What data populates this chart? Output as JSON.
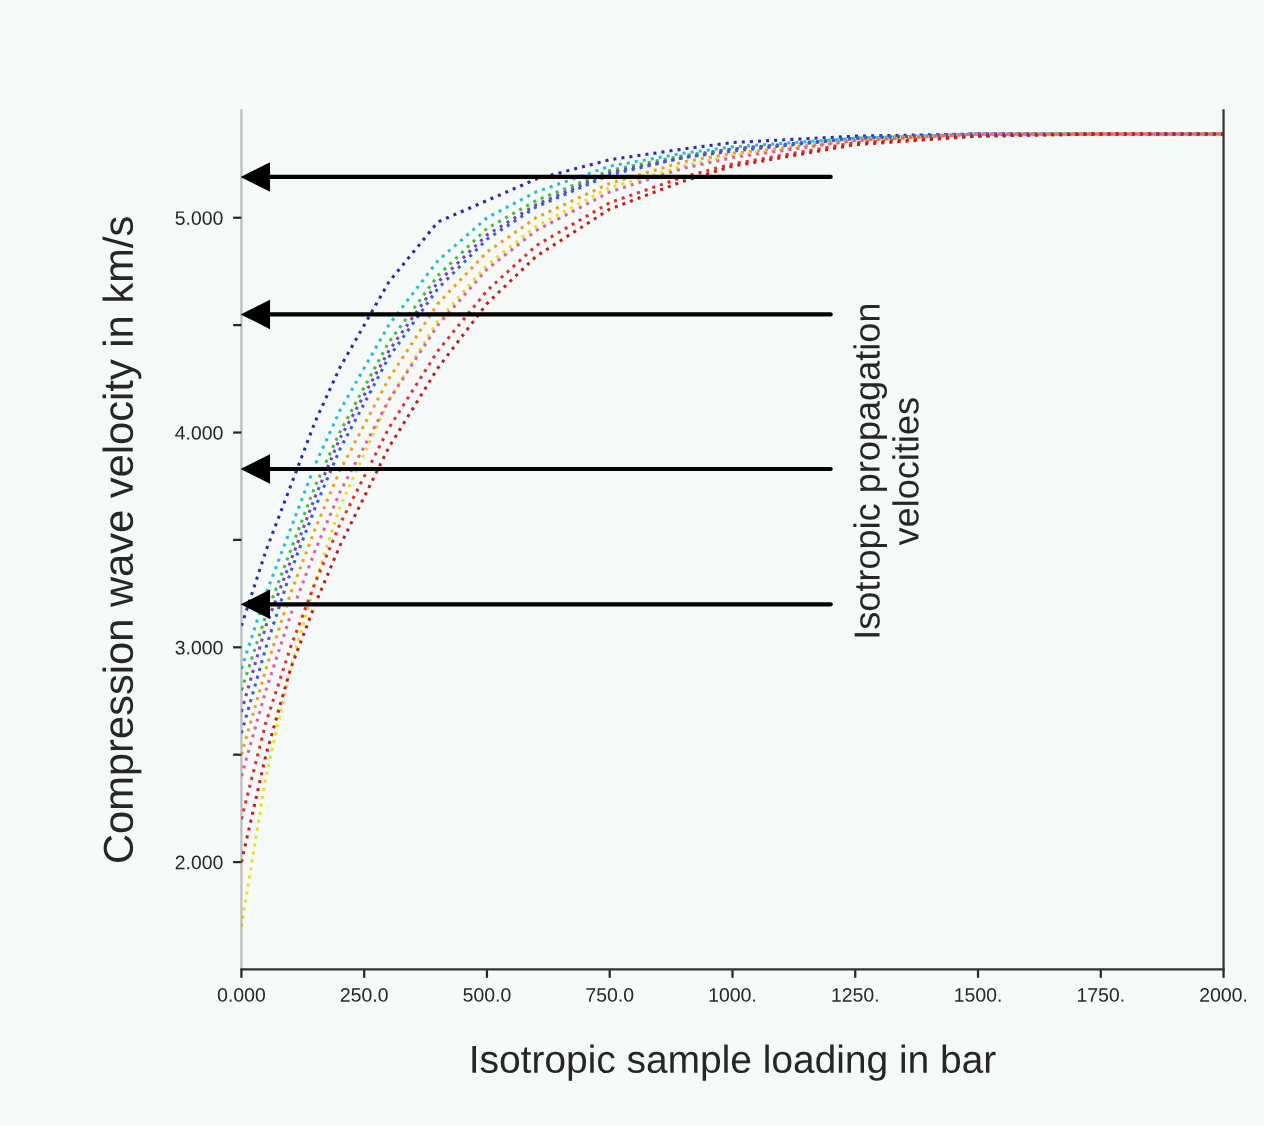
{
  "chart_data": {
    "type": "line",
    "xlabel": "Isotropic sample loading in bar",
    "ylabel": "Compression wave velocity in km/s",
    "x": [
      0,
      50,
      100,
      150,
      200,
      300,
      400,
      500,
      600,
      750,
      900,
      1000,
      1250,
      1500,
      1750,
      2000
    ],
    "series": [
      {
        "color": "#2b2bb0",
        "values": [
          3.1,
          3.45,
          3.75,
          4.05,
          4.3,
          4.7,
          4.98,
          5.08,
          5.18,
          5.27,
          5.32,
          5.35,
          5.38,
          5.39,
          5.39,
          5.39
        ]
      },
      {
        "color": "#22c0d8",
        "values": [
          2.9,
          3.25,
          3.55,
          3.85,
          4.1,
          4.5,
          4.8,
          5.0,
          5.12,
          5.24,
          5.3,
          5.33,
          5.37,
          5.39,
          5.39,
          5.39
        ]
      },
      {
        "color": "#40c040",
        "values": [
          2.8,
          3.15,
          3.45,
          3.75,
          4.0,
          4.42,
          4.73,
          4.95,
          5.08,
          5.22,
          5.29,
          5.32,
          5.37,
          5.39,
          5.39,
          5.39
        ]
      },
      {
        "color": "#8040c0",
        "values": [
          2.7,
          3.1,
          3.4,
          3.7,
          3.97,
          4.38,
          4.7,
          4.92,
          5.06,
          5.21,
          5.28,
          5.32,
          5.37,
          5.39,
          5.39,
          5.39
        ]
      },
      {
        "color": "#3060e0",
        "values": [
          2.6,
          3.0,
          3.35,
          3.65,
          3.92,
          4.35,
          4.67,
          4.9,
          5.05,
          5.2,
          5.28,
          5.31,
          5.37,
          5.39,
          5.39,
          5.39
        ]
      },
      {
        "color": "#f0a020",
        "values": [
          2.5,
          2.9,
          3.25,
          3.55,
          3.82,
          4.25,
          4.6,
          4.84,
          5.0,
          5.16,
          5.26,
          5.3,
          5.36,
          5.39,
          5.39,
          5.39
        ]
      },
      {
        "color": "#e8e020",
        "values": [
          1.7,
          2.4,
          2.9,
          3.3,
          3.65,
          4.15,
          4.52,
          4.78,
          4.96,
          5.14,
          5.24,
          5.29,
          5.36,
          5.39,
          5.39,
          5.39
        ]
      },
      {
        "color": "#e060a0",
        "values": [
          2.4,
          2.8,
          3.15,
          3.45,
          3.72,
          4.15,
          4.5,
          4.76,
          4.94,
          5.12,
          5.23,
          5.28,
          5.36,
          5.39,
          5.39,
          5.39
        ]
      },
      {
        "color": "#e03030",
        "values": [
          2.2,
          2.65,
          3.0,
          3.3,
          3.57,
          4.02,
          4.38,
          4.66,
          4.87,
          5.07,
          5.19,
          5.25,
          5.35,
          5.38,
          5.39,
          5.39
        ]
      },
      {
        "color": "#c02020",
        "values": [
          2.0,
          2.5,
          2.9,
          3.2,
          3.47,
          3.93,
          4.3,
          4.6,
          4.82,
          5.04,
          5.17,
          5.24,
          5.34,
          5.38,
          5.39,
          5.39
        ]
      }
    ],
    "xlim": [
      0,
      2000
    ],
    "xticks": [
      {
        "value": 0,
        "label": "0.000"
      },
      {
        "value": 250,
        "label": "250.0"
      },
      {
        "value": 500,
        "label": "500.0"
      },
      {
        "value": 750,
        "label": "750.0"
      },
      {
        "value": 1000,
        "label": "1000."
      },
      {
        "value": 1250,
        "label": "1250."
      },
      {
        "value": 1500,
        "label": "1500."
      },
      {
        "value": 1750,
        "label": "1750."
      },
      {
        "value": 2000,
        "label": "2000."
      }
    ],
    "ylim": [
      1.5,
      5.5
    ],
    "yticks": [
      {
        "value": 2,
        "label": "2.000"
      },
      {
        "value": 2.5,
        "label": null
      },
      {
        "value": 3,
        "label": "3.000"
      },
      {
        "value": 3.5,
        "label": null
      },
      {
        "value": 4,
        "label": "4.000"
      },
      {
        "value": 4.5,
        "label": null
      },
      {
        "value": 5,
        "label": "5.000"
      }
    ],
    "ref_lines": [
      {
        "axis": "y",
        "value": 5.19,
        "color": "#000000"
      },
      {
        "axis": "y",
        "value": 4.55,
        "color": "#000000"
      },
      {
        "axis": "y",
        "value": 3.83,
        "color": "#000000"
      },
      {
        "axis": "y",
        "value": 3.2,
        "color": "#000000"
      }
    ],
    "annotations": [
      "Isotropic propagation\nvelocities"
    ],
    "line_style": "dotted",
    "marker": "none",
    "grid": false,
    "legend": false
  }
}
